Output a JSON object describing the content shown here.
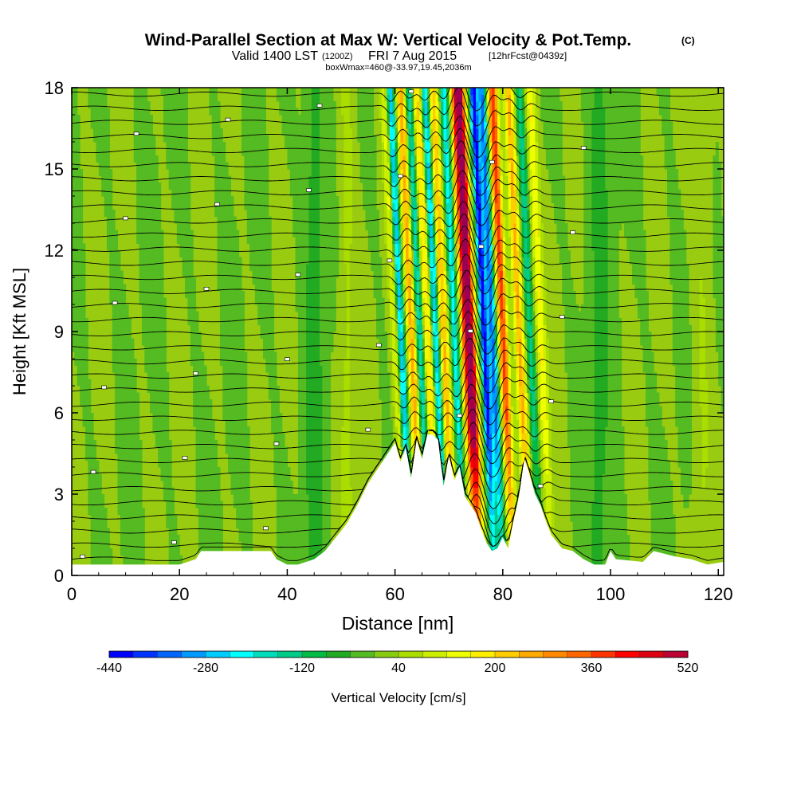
{
  "header": {
    "title": "Wind-Parallel Section at Max W: Vertical Velocity & Pot.Temp.",
    "title_unit": "(C)",
    "valid_prefix": "Valid 1400 LST",
    "valid_zulu": "(1200Z)",
    "valid_date": "FRI 7 Aug 2015",
    "forecast": "[12hrFcst@0439z]",
    "box_info": "boxWmax=460@-33.97,19.45,2036m"
  },
  "chart_data": {
    "type": "heatmap",
    "title": "Wind-Parallel Section at Max W: Vertical Velocity & Pot.Temp.",
    "xlabel": "Distance [nm]",
    "ylabel": "Height [Kft MSL]",
    "xlim": [
      0,
      121
    ],
    "ylim": [
      0,
      18
    ],
    "x_ticks": [
      "0",
      "20",
      "40",
      "60",
      "80",
      "100",
      "120"
    ],
    "y_ticks": [
      "0",
      "3",
      "6",
      "9",
      "12",
      "15",
      "18"
    ],
    "colorbar": {
      "label": "Vertical Velocity [cm/s]",
      "min": -440,
      "max": 520,
      "step": 40,
      "tick_labels": [
        "-440",
        "-280",
        "-120",
        "40",
        "200",
        "360",
        "520"
      ],
      "colors": [
        "#0000ff",
        "#0033ff",
        "#0066ff",
        "#0099ff",
        "#00ccff",
        "#00ffff",
        "#00ddbb",
        "#00cc88",
        "#00bb44",
        "#22aa22",
        "#55bb22",
        "#88cc11",
        "#aadd00",
        "#ccee00",
        "#eeff00",
        "#ffee00",
        "#ffcc00",
        "#ffaa00",
        "#ff8800",
        "#ff6600",
        "#ff3300",
        "#ff0000",
        "#dd0011",
        "#bb0033",
        "#990055"
      ]
    },
    "updraft_bands": [
      {
        "x": 62,
        "w": 130
      },
      {
        "x": 65,
        "w": 260
      },
      {
        "x": 68,
        "w": 200
      },
      {
        "x": 71,
        "w": 240
      },
      {
        "x": 75,
        "w": 330
      },
      {
        "x": 76,
        "w": 460
      },
      {
        "x": 82,
        "w": 380
      },
      {
        "x": 85,
        "w": 250
      },
      {
        "x": 89,
        "w": 160
      }
    ],
    "downdraft_bands": [
      {
        "x": 63,
        "w": -300
      },
      {
        "x": 66.5,
        "w": -200
      },
      {
        "x": 69.5,
        "w": -280
      },
      {
        "x": 73,
        "w": -220
      },
      {
        "x": 78.5,
        "w": -440
      },
      {
        "x": 80,
        "w": -340
      },
      {
        "x": 87,
        "w": -140
      }
    ],
    "terrain_profile": {
      "x": [
        0,
        20,
        23,
        24,
        37,
        38,
        40,
        42,
        45,
        47,
        49,
        51,
        53,
        55,
        57,
        59,
        60,
        61,
        62,
        63,
        64,
        65,
        66,
        67,
        68,
        69,
        70,
        71,
        72,
        73,
        74,
        75,
        76,
        77,
        78,
        79,
        80,
        81,
        82,
        83,
        84,
        85,
        86,
        87,
        88,
        89,
        91,
        93,
        95,
        97,
        99,
        100,
        101,
        106,
        108,
        112,
        115,
        118,
        121
      ],
      "height_kft": [
        0.4,
        0.4,
        0.6,
        0.9,
        0.9,
        0.6,
        0.4,
        0.4,
        0.6,
        0.9,
        1.4,
        1.9,
        2.6,
        3.4,
        4.0,
        4.6,
        4.9,
        4.2,
        4.7,
        3.6,
        5.0,
        4.3,
        5.2,
        5.2,
        5.0,
        3.3,
        4.4,
        3.5,
        4.0,
        2.9,
        2.6,
        2.3,
        1.7,
        1.2,
        0.9,
        1.0,
        1.4,
        1.0,
        2.0,
        2.9,
        4.3,
        3.7,
        3.0,
        2.6,
        2.0,
        1.5,
        1.0,
        0.9,
        0.6,
        0.4,
        0.4,
        0.9,
        0.6,
        0.5,
        0.9,
        0.7,
        0.6,
        0.4,
        0.5
      ]
    },
    "theta_isentropes": {
      "count": 34,
      "annotation": "contour labels of potential temperature (C)"
    }
  }
}
